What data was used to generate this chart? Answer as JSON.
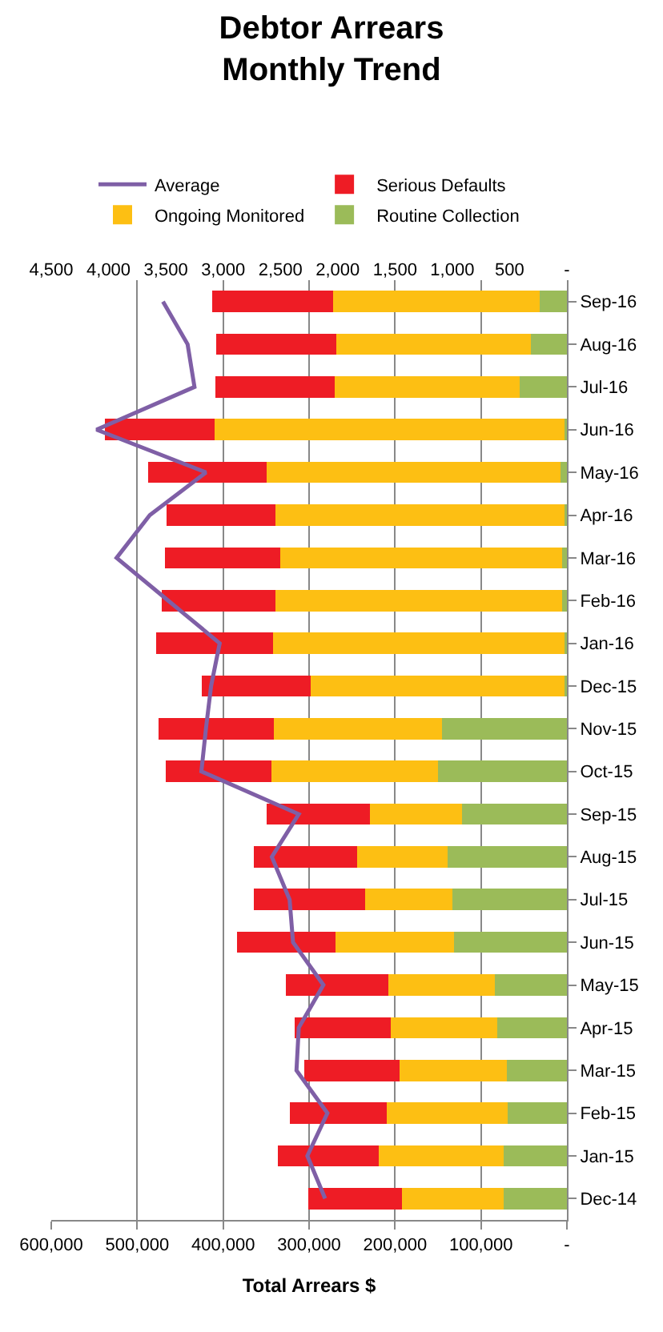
{
  "chart_data": {
    "type": "bar",
    "title": "Debtor Arrears\nMonthly Trend",
    "xlabel": "Total Arrears $",
    "orientation": "horizontal",
    "stacked": true,
    "grid": "x",
    "legend": "top",
    "categories": [
      "Sep-16",
      "Aug-16",
      "Jul-16",
      "Jun-16",
      "May-16",
      "Apr-16",
      "Mar-16",
      "Feb-16",
      "Jan-16",
      "Dec-15",
      "Nov-15",
      "Oct-15",
      "Sep-15",
      "Aug-15",
      "Jul-15",
      "Jun-15",
      "May-15",
      "Apr-15",
      "Mar-15",
      "Feb-15",
      "Jan-15",
      "Dec-14"
    ],
    "xlim": [
      600000,
      0
    ],
    "xticks": [
      {
        "value": 600000,
        "label": "600,000"
      },
      {
        "value": 500000,
        "label": "500,000"
      },
      {
        "value": 400000,
        "label": "400,000"
      },
      {
        "value": 300000,
        "label": "300,000"
      },
      {
        "value": 200000,
        "label": "200,000"
      },
      {
        "value": 100000,
        "label": "100,000"
      },
      {
        "value": 0,
        "label": "-"
      }
    ],
    "x2lim": [
      4500,
      0
    ],
    "x2ticks": [
      {
        "value": 4500,
        "label": "4,500"
      },
      {
        "value": 4000,
        "label": "4,000"
      },
      {
        "value": 3500,
        "label": "3,500"
      },
      {
        "value": 3000,
        "label": "3,000"
      },
      {
        "value": 2500,
        "label": "2,500"
      },
      {
        "value": 2000,
        "label": "2,000"
      },
      {
        "value": 1500,
        "label": "1,500"
      },
      {
        "value": 1000,
        "label": "1,000"
      },
      {
        "value": 500,
        "label": "500"
      },
      {
        "value": 0,
        "label": "-"
      }
    ],
    "series": [
      {
        "name": "Routine Collection",
        "color": "#9bbb59",
        "values": [
          32000,
          42000,
          55000,
          3000,
          7000,
          3000,
          6000,
          6000,
          3000,
          3000,
          145000,
          150000,
          122000,
          139000,
          133000,
          131000,
          84000,
          81000,
          70000,
          69000,
          74000,
          74000
        ]
      },
      {
        "name": "Ongoing Monitored",
        "color": "#fdbf13",
        "values": [
          240000,
          226000,
          215000,
          407000,
          342000,
          336000,
          328000,
          333000,
          339000,
          295000,
          196000,
          194000,
          107000,
          105000,
          102000,
          138000,
          124000,
          124000,
          125000,
          141000,
          145000,
          118000
        ]
      },
      {
        "name": "Serious Defaults",
        "color": "#ee1c25",
        "values": [
          141000,
          140000,
          139000,
          128000,
          138000,
          127000,
          134000,
          132000,
          136000,
          127000,
          134000,
          123000,
          120000,
          120000,
          129000,
          115000,
          119000,
          112000,
          111000,
          112000,
          117000,
          109000
        ]
      },
      {
        "name": "Average",
        "color": "#7f5fa6",
        "type": "line",
        "axis": "x2",
        "marker": "none",
        "values": [
          3525,
          3310,
          3250,
          4105,
          3150,
          3640,
          3930,
          3480,
          3030,
          3105,
          3150,
          3190,
          2340,
          2575,
          2420,
          2390,
          2125,
          2340,
          2360,
          2090,
          2265,
          2110
        ]
      }
    ]
  }
}
